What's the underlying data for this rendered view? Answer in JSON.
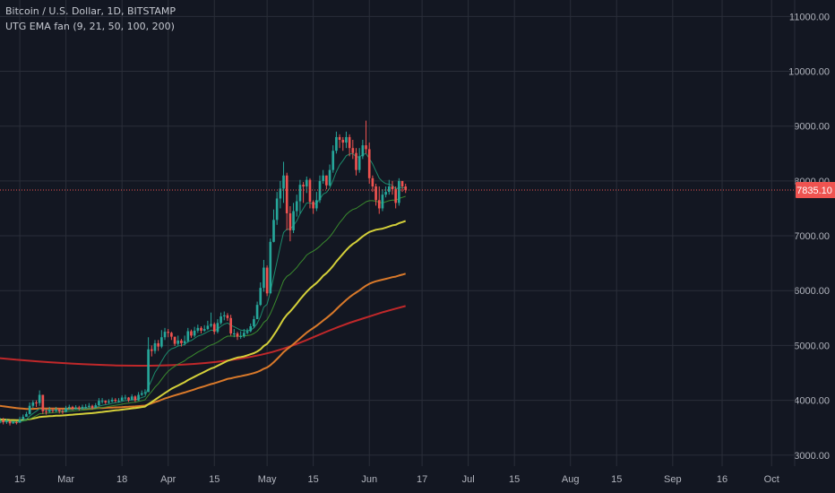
{
  "legend": {
    "symbol": "Bitcoin / U.S. Dollar, 1D, BITSTAMP",
    "indicator": "UTG EMA fan (9, 21, 50, 100, 200)"
  },
  "colors": {
    "background": "#131722",
    "grid": "#2a2e39",
    "axis_text": "#b2b5be",
    "up_candle": "#26a69a",
    "down_candle": "#ef5350",
    "price_line": "#ef5350",
    "ema9": "#1b8a6b",
    "ema21": "#3a8a2e",
    "ema50": "#d4d03a",
    "ema100": "#d9792a",
    "ema200": "#c0282a"
  },
  "chart_data": {
    "type": "candlestick",
    "title": "Bitcoin / U.S. Dollar, 1D, BITSTAMP",
    "ylim": [
      2800,
      11300
    ],
    "y_ticks": [
      3000,
      4000,
      5000,
      6000,
      7000,
      8000,
      9000,
      10000,
      11000
    ],
    "y_tick_labels": [
      "3000.00",
      "4000.00",
      "5000.00",
      "6000.00",
      "7000.00",
      "8000.00",
      "9000.00",
      "10000.00",
      "11000.00"
    ],
    "x_range": [
      "2019-02-09",
      "2019-10-08"
    ],
    "x_ticks": [
      {
        "date": "2019-02-15",
        "label": "15"
      },
      {
        "date": "2019-03-01",
        "label": "Mar"
      },
      {
        "date": "2019-03-18",
        "label": "18"
      },
      {
        "date": "2019-04-01",
        "label": "Apr"
      },
      {
        "date": "2019-04-15",
        "label": "15"
      },
      {
        "date": "2019-05-01",
        "label": "May"
      },
      {
        "date": "2019-05-15",
        "label": "15"
      },
      {
        "date": "2019-06-01",
        "label": "Jun"
      },
      {
        "date": "2019-06-17",
        "label": "17"
      },
      {
        "date": "2019-07-01",
        "label": "Jul"
      },
      {
        "date": "2019-07-15",
        "label": "15"
      },
      {
        "date": "2019-08-01",
        "label": "Aug"
      },
      {
        "date": "2019-08-15",
        "label": "15"
      },
      {
        "date": "2019-09-01",
        "label": "Sep"
      },
      {
        "date": "2019-09-16",
        "label": "16"
      },
      {
        "date": "2019-10-01",
        "label": "Oct"
      }
    ],
    "last_price": 7835.1,
    "last_price_label": "7835.10",
    "candle_closes_start_date": "2019-02-09",
    "candle_open_first": 3620,
    "candle_closes": [
      3640,
      3600,
      3620,
      3580,
      3600,
      3590,
      3650,
      3700,
      3750,
      3900,
      3960,
      3950,
      4100,
      3800,
      3790,
      3820,
      3810,
      3830,
      3800,
      3790,
      3860,
      3880,
      3850,
      3870,
      3850,
      3880,
      3880,
      3900,
      3860,
      3910,
      3990,
      3990,
      3960,
      3980,
      4010,
      3990,
      3990,
      4050,
      4050,
      4000,
      4070,
      4000,
      4100,
      4130,
      4150,
      4930,
      4900,
      5040,
      4980,
      5150,
      5250,
      5230,
      5160,
      5030,
      5090,
      5040,
      5080,
      5260,
      5180,
      5270,
      5320,
      5270,
      5300,
      5360,
      5390,
      5250,
      5410,
      5530,
      5550,
      5500,
      5220,
      5220,
      5160,
      5170,
      5230,
      5260,
      5350,
      5480,
      5740,
      6050,
      6420,
      5950,
      6890,
      7290,
      7680,
      7860,
      8100,
      7410,
      7100,
      7450,
      7630,
      7930,
      7900,
      8020,
      7620,
      7500,
      7650,
      8000,
      8100,
      7920,
      8200,
      8550,
      8800,
      8750,
      8700,
      8800,
      8600,
      8510,
      8200,
      8450,
      8650,
      8580,
      8050,
      7900,
      7650,
      7500,
      7750,
      7800,
      7900,
      7850,
      7600,
      8000,
      7900,
      7835
    ],
    "candle_highs": [
      3680,
      3680,
      3660,
      3640,
      3630,
      3620,
      3700,
      3740,
      3790,
      3960,
      4000,
      4000,
      4180,
      4100,
      3850,
      3880,
      3860,
      3880,
      3860,
      3840,
      3900,
      3920,
      3900,
      3910,
      3900,
      3920,
      3930,
      3950,
      3920,
      3950,
      4040,
      4040,
      4000,
      4020,
      4050,
      4040,
      4040,
      4090,
      4100,
      4060,
      4110,
      4090,
      4150,
      4180,
      4200,
      5150,
      5000,
      5100,
      5100,
      5280,
      5320,
      5300,
      5250,
      5150,
      5180,
      5120,
      5180,
      5320,
      5290,
      5340,
      5380,
      5350,
      5370,
      5450,
      5600,
      5420,
      5480,
      5600,
      5620,
      5590,
      5560,
      5300,
      5250,
      5260,
      5300,
      5310,
      5400,
      5540,
      5800,
      6150,
      6560,
      6460,
      6950,
      7480,
      7800,
      8000,
      8350,
      8150,
      7540,
      7600,
      7750,
      8020,
      7980,
      8080,
      8050,
      7650,
      7800,
      8100,
      8200,
      8100,
      8300,
      8650,
      8900,
      8850,
      8800,
      8900,
      8850,
      8750,
      8600,
      8600,
      8750,
      9100,
      8700,
      8100,
      7950,
      7900,
      7850,
      7900,
      8020,
      8000,
      7900,
      8050,
      7980,
      7950
    ],
    "candle_lows": [
      3580,
      3560,
      3570,
      3540,
      3570,
      3560,
      3600,
      3650,
      3700,
      3740,
      3860,
      3880,
      3900,
      3750,
      3740,
      3770,
      3770,
      3780,
      3760,
      3750,
      3780,
      3830,
      3820,
      3830,
      3810,
      3830,
      3840,
      3860,
      3830,
      3860,
      3900,
      3940,
      3930,
      3940,
      3960,
      3960,
      3960,
      3990,
      4010,
      3970,
      4000,
      3970,
      3990,
      4080,
      4100,
      4150,
      4800,
      4850,
      4900,
      4950,
      5100,
      5150,
      5100,
      4990,
      5000,
      4980,
      5000,
      5050,
      5140,
      5150,
      5230,
      5220,
      5250,
      5280,
      5330,
      5200,
      5220,
      5380,
      5460,
      5450,
      5180,
      5150,
      5100,
      5120,
      5140,
      5200,
      5240,
      5320,
      5480,
      5720,
      5980,
      5900,
      5950,
      6880,
      7200,
      7500,
      7600,
      7100,
      6900,
      7050,
      7350,
      7400,
      7600,
      7780,
      7500,
      7400,
      7450,
      7600,
      7950,
      7850,
      7900,
      8150,
      8500,
      8600,
      8550,
      8600,
      8450,
      8400,
      8100,
      8150,
      8400,
      8500,
      7950,
      7800,
      7550,
      7400,
      7450,
      7700,
      7750,
      7750,
      7500,
      7550,
      7800,
      7780
    ],
    "series": [
      {
        "name": "EMA 9",
        "start_date": "2019-02-09",
        "values": [
          3600,
          3610,
          3620,
          3610,
          3605,
          3600,
          3610,
          3630,
          3655,
          3710,
          3760,
          3800,
          3850,
          3830,
          3820,
          3820,
          3820,
          3820,
          3810,
          3810,
          3820,
          3830,
          3830,
          3840,
          3840,
          3850,
          3855,
          3860,
          3860,
          3870,
          3890,
          3910,
          3920,
          3930,
          3945,
          3955,
          3960,
          3980,
          3995,
          3995,
          4010,
          4010,
          4030,
          4050,
          4070,
          4240,
          4370,
          4510,
          4600,
          4710,
          4810,
          4890,
          4940,
          4960,
          4990,
          5000,
          5020,
          5070,
          5090,
          5130,
          5170,
          5190,
          5220,
          5250,
          5280,
          5270,
          5300,
          5350,
          5390,
          5410,
          5370,
          5340,
          5310,
          5280,
          5270,
          5270,
          5280,
          5320,
          5400,
          5530,
          5700,
          5750,
          5980,
          6250,
          6530,
          6800,
          7060,
          7120,
          7120,
          7190,
          7270,
          7400,
          7500,
          7600,
          7600,
          7580,
          7590,
          7670,
          7760,
          7790,
          7870,
          8010,
          8170,
          8290,
          8370,
          8460,
          8490,
          8500,
          8440,
          8440,
          8480,
          8500,
          8410,
          8310,
          8180,
          8050,
          7990,
          7950,
          7940,
          7920,
          7850,
          7880,
          7880,
          7870
        ]
      },
      {
        "name": "EMA 21",
        "start_date": "2019-02-09",
        "values": [
          3620,
          3620,
          3620,
          3615,
          3612,
          3610,
          3612,
          3620,
          3632,
          3660,
          3690,
          3720,
          3755,
          3760,
          3765,
          3770,
          3775,
          3780,
          3782,
          3785,
          3790,
          3798,
          3803,
          3810,
          3815,
          3820,
          3826,
          3832,
          3835,
          3842,
          3855,
          3868,
          3878,
          3888,
          3900,
          3910,
          3918,
          3930,
          3942,
          3948,
          3960,
          3965,
          3978,
          3994,
          4010,
          4090,
          4160,
          4240,
          4300,
          4380,
          4460,
          4530,
          4580,
          4620,
          4660,
          4690,
          4720,
          4770,
          4800,
          4840,
          4880,
          4910,
          4940,
          4980,
          5010,
          5030,
          5060,
          5100,
          5140,
          5170,
          5170,
          5170,
          5170,
          5170,
          5170,
          5180,
          5190,
          5220,
          5260,
          5330,
          5420,
          5470,
          5580,
          5720,
          5870,
          6020,
          6180,
          6260,
          6300,
          6360,
          6420,
          6500,
          6570,
          6650,
          6690,
          6720,
          6760,
          6810,
          6870,
          6920,
          6980,
          7060,
          7150,
          7240,
          7310,
          7390,
          7440,
          7480,
          7500,
          7540,
          7580,
          7620,
          7640,
          7640,
          7630,
          7610,
          7600,
          7620,
          7640,
          7650,
          7650,
          7680,
          7700,
          7720
        ]
      },
      {
        "name": "EMA 50",
        "start_date": "2019-02-09",
        "values": [
          3650,
          3648,
          3646,
          3642,
          3640,
          3637,
          3637,
          3640,
          3645,
          3655,
          3668,
          3680,
          3695,
          3700,
          3705,
          3710,
          3713,
          3718,
          3720,
          3723,
          3728,
          3734,
          3738,
          3744,
          3748,
          3753,
          3758,
          3763,
          3766,
          3772,
          3780,
          3788,
          3795,
          3802,
          3810,
          3816,
          3822,
          3830,
          3838,
          3844,
          3852,
          3857,
          3866,
          3876,
          3886,
          3930,
          3970,
          4010,
          4050,
          4090,
          4130,
          4170,
          4210,
          4240,
          4270,
          4300,
          4330,
          4370,
          4400,
          4430,
          4460,
          4490,
          4520,
          4550,
          4580,
          4600,
          4630,
          4660,
          4690,
          4720,
          4740,
          4760,
          4780,
          4790,
          4800,
          4820,
          4840,
          4860,
          4890,
          4930,
          4990,
          5030,
          5100,
          5190,
          5280,
          5380,
          5480,
          5560,
          5620,
          5690,
          5760,
          5840,
          5910,
          5980,
          6040,
          6090,
          6140,
          6200,
          6270,
          6320,
          6380,
          6450,
          6530,
          6600,
          6670,
          6740,
          6800,
          6850,
          6890,
          6940,
          6990,
          7030,
          7070,
          7090,
          7110,
          7120,
          7130,
          7150,
          7170,
          7190,
          7200,
          7230,
          7250,
          7270
        ]
      },
      {
        "name": "EMA 100",
        "start_date": "2019-02-09",
        "values": [
          3900,
          3890,
          3882,
          3874,
          3866,
          3858,
          3852,
          3847,
          3843,
          3843,
          3845,
          3847,
          3852,
          3850,
          3850,
          3850,
          3850,
          3850,
          3848,
          3847,
          3847,
          3848,
          3848,
          3849,
          3849,
          3850,
          3851,
          3852,
          3852,
          3854,
          3857,
          3860,
          3862,
          3865,
          3868,
          3870,
          3872,
          3876,
          3880,
          3882,
          3886,
          3888,
          3893,
          3898,
          3903,
          3925,
          3945,
          3967,
          3987,
          4010,
          4032,
          4052,
          4072,
          4090,
          4108,
          4125,
          4142,
          4162,
          4180,
          4200,
          4220,
          4238,
          4256,
          4276,
          4296,
          4310,
          4330,
          4350,
          4370,
          4390,
          4400,
          4415,
          4428,
          4440,
          4452,
          4466,
          4480,
          4496,
          4516,
          4542,
          4576,
          4600,
          4640,
          4694,
          4753,
          4814,
          4880,
          4930,
          4975,
          5025,
          5075,
          5130,
          5182,
          5234,
          5278,
          5318,
          5360,
          5405,
          5455,
          5500,
          5550,
          5600,
          5660,
          5720,
          5775,
          5830,
          5880,
          5925,
          5965,
          6005,
          6050,
          6090,
          6125,
          6150,
          6170,
          6185,
          6200,
          6215,
          6230,
          6245,
          6255,
          6275,
          6292,
          6310
        ]
      },
      {
        "name": "EMA 200",
        "start_date": "2019-01-01",
        "values": [
          5050,
          5020,
          4990,
          4960,
          4930,
          4900,
          4880,
          4860,
          4840,
          4820,
          4800,
          4780,
          4760,
          4740,
          4725,
          4710,
          4695,
          4682,
          4670,
          4660,
          4650,
          4642,
          4636,
          4632,
          4630,
          4630,
          4634,
          4640,
          4650,
          4664,
          4680,
          4700,
          4725,
          4755,
          4790,
          4830,
          4880,
          4940,
          5010,
          5090,
          5175,
          5260,
          5340,
          5415,
          5480,
          5545,
          5610,
          5665,
          5720
        ]
      }
    ]
  }
}
